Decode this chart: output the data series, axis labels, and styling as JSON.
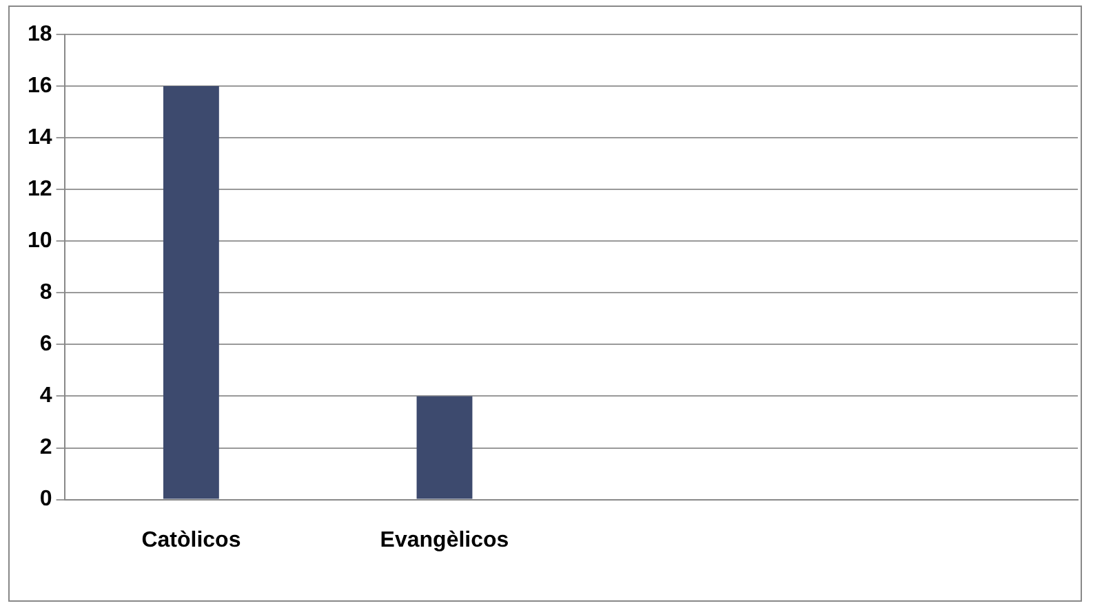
{
  "chart_data": {
    "type": "bar",
    "categories": [
      "Catòlicos",
      "Evangèlicos",
      null,
      null
    ],
    "values": [
      16,
      4,
      null,
      null
    ],
    "color": "#3d4a6e",
    "ylim": [
      0,
      18
    ],
    "yticks": [
      0,
      2,
      4,
      6,
      8,
      10,
      12,
      14,
      16,
      18
    ],
    "grid": "y"
  }
}
